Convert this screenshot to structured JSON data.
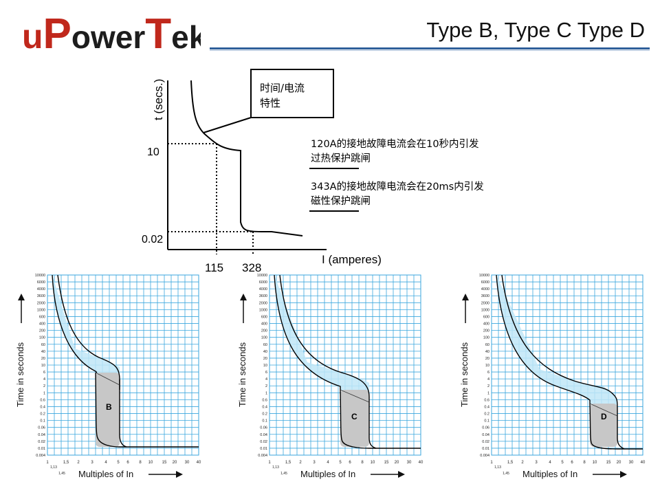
{
  "logo": {
    "text_u": "u",
    "text_P": "P",
    "text_ower": "ower",
    "text_T": "T",
    "text_ek": "ek"
  },
  "title": "Type B, Type C  Type D",
  "main_diagram": {
    "y_axis_label": "t (secs.)",
    "x_axis_label": "I (amperes)",
    "y_tick_10": "10",
    "y_tick_002": "0.02",
    "x_tick_115": "115",
    "x_tick_328": "328",
    "callout_line1": "时间/电流",
    "callout_line2": "特性"
  },
  "notes": [
    {
      "line1": "120A的接地故障电流会在10秒内引发",
      "line2": "过热保护跳闸"
    },
    {
      "line1": "343A的接地故障电流会在20ms内引发",
      "line2": "磁性保护跳闸"
    }
  ],
  "curve_charts": [
    {
      "label": "B"
    },
    {
      "label": "C"
    },
    {
      "label": "D"
    }
  ],
  "curve_axes": {
    "y_label": "Time in seconds",
    "x_label": "Multiples of In",
    "y_ticks": [
      "10000",
      "6000",
      "4000",
      "3600",
      "2000",
      "1000",
      "600",
      "400",
      "200",
      "100",
      "60",
      "40",
      "20",
      "10",
      "6",
      "4",
      "2",
      "1",
      "0.6",
      "0.4",
      "0.2",
      "0.1",
      "0.06",
      "0.04",
      "0.02",
      "0.01",
      "0.004"
    ],
    "x_ticks": [
      "1",
      "1,5",
      "2",
      "3",
      "4",
      "5",
      "6",
      "8",
      "10",
      "15",
      "20",
      "30",
      "40"
    ],
    "x_extra_ticks": [
      "1,13",
      "1,45"
    ]
  },
  "colors": {
    "grid": "#39a6dd",
    "band": "#bfe6f7",
    "magnetic": "#c7c7c7",
    "logo_red": "#c0281c",
    "logo_dark": "#1d1d1d",
    "rule": "#2f5f9a"
  }
}
